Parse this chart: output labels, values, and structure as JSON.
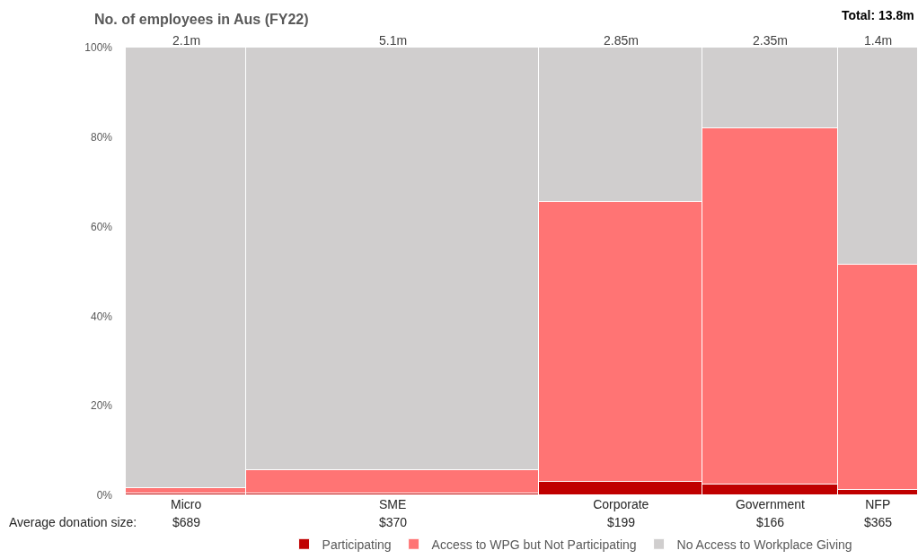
{
  "chart_data": {
    "type": "bar",
    "title": "No. of employees in Aus (FY22)",
    "categories": [
      "Micro",
      "SME",
      "Corporate",
      "Government",
      "NFP"
    ],
    "series": [
      {
        "name": "Participating",
        "color": "#c00000",
        "values": [
          0.5,
          0.5,
          3.0,
          2.5,
          1.3
        ]
      },
      {
        "name": "Access to WPG but Not Participating",
        "color": "#ff7474",
        "values": [
          1.1,
          5.1,
          62.5,
          79.5,
          50.2
        ]
      },
      {
        "name": "No Access to Workplace Giving",
        "color": "#d0cece",
        "values": [
          98.4,
          94.4,
          34.5,
          18.0,
          48.5
        ]
      }
    ],
    "stacked": true,
    "ylim": [
      0,
      100
    ],
    "yticks": [
      {
        "value": 0,
        "label": "0%"
      },
      {
        "value": 20,
        "label": "20%"
      },
      {
        "value": 40,
        "label": "40%"
      },
      {
        "value": 60,
        "label": "60%"
      },
      {
        "value": 80,
        "label": "80%"
      },
      {
        "value": 100,
        "label": "100%"
      }
    ],
    "legend": "bottom",
    "annotations": [
      "Total: 13.8m",
      "Average donation size:",
      "$689",
      "$370",
      "$199",
      "$166",
      "$365",
      {
        "text": "2.1m",
        "x": "Micro",
        "y": 100
      },
      {
        "text": "5.1m",
        "x": "SME",
        "y": 100
      },
      {
        "text": "2.85m",
        "x": "Corporate",
        "y": 100
      },
      {
        "text": "2.35m",
        "x": "Government",
        "y": 100
      },
      {
        "text": "1.4m",
        "x": "NFP",
        "y": 100
      }
    ]
  }
}
